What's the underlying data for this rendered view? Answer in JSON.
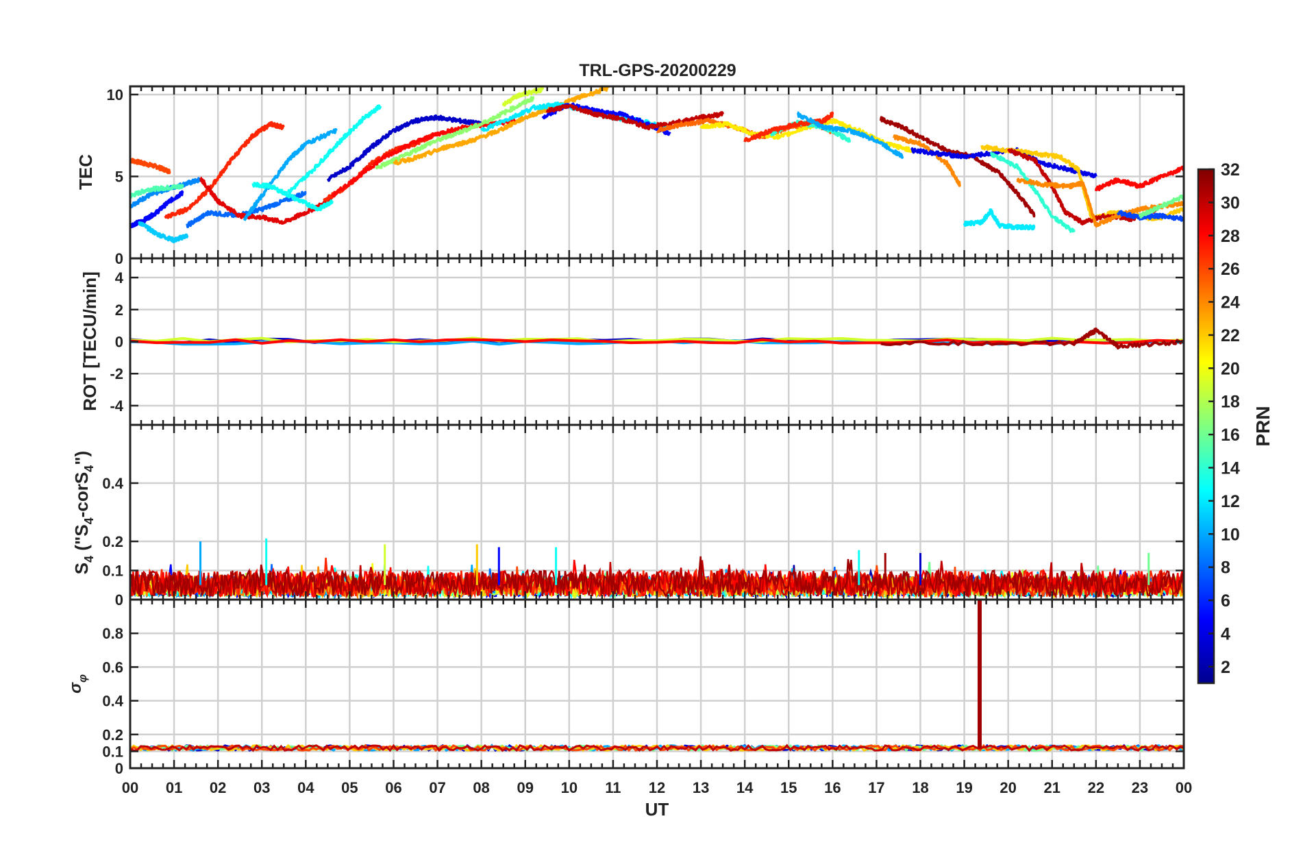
{
  "chart_data": {
    "type": "line",
    "title": "TRL-GPS-20200229",
    "xlabel": "UT",
    "xlim": [
      0,
      24
    ],
    "x_tick_labels": [
      "00",
      "01",
      "02",
      "03",
      "04",
      "05",
      "06",
      "07",
      "08",
      "09",
      "10",
      "11",
      "12",
      "13",
      "14",
      "15",
      "16",
      "17",
      "18",
      "19",
      "20",
      "21",
      "22",
      "23",
      "00"
    ],
    "grid": true,
    "colorbar": {
      "label": "PRN",
      "range": [
        1,
        32
      ],
      "ticks": [
        "2",
        "4",
        "6",
        "8",
        "10",
        "12",
        "14",
        "16",
        "18",
        "20",
        "22",
        "24",
        "26",
        "28",
        "30",
        "32"
      ],
      "colormap": "jet",
      "colors": [
        "#00008f",
        "#0000ff",
        "#0080ff",
        "#00ffff",
        "#80ff80",
        "#ffff00",
        "#ff8000",
        "#ff0000",
        "#800000"
      ]
    },
    "panels": [
      {
        "id": "tec",
        "ylabel": "TEC",
        "ylim": [
          0,
          10.5
        ],
        "y_ticks": [
          0,
          5,
          10
        ],
        "y_tick_labels": [
          "0",
          "5",
          "10"
        ],
        "series": [
          {
            "prn": 26,
            "x": [
              0.0,
              0.3,
              0.6,
              0.9
            ],
            "y": [
              6.0,
              5.8,
              5.6,
              5.3
            ]
          },
          {
            "prn": 9,
            "x": [
              0.0,
              0.4,
              0.8,
              1.2,
              1.6
            ],
            "y": [
              3.2,
              3.8,
              4.2,
              4.5,
              4.8
            ]
          },
          {
            "prn": 15,
            "x": [
              0.0,
              0.4,
              0.8,
              1.2
            ],
            "y": [
              3.8,
              4.2,
              4.3,
              4.4
            ]
          },
          {
            "prn": 5,
            "x": [
              0.0,
              0.3,
              0.6,
              0.9,
              1.2
            ],
            "y": [
              2.0,
              2.3,
              2.8,
              3.5,
              4.0
            ]
          },
          {
            "prn": 11,
            "x": [
              0.2,
              0.6,
              1.0,
              1.3
            ],
            "y": [
              2.2,
              1.5,
              1.1,
              1.4
            ]
          },
          {
            "prn": 27,
            "x": [
              0.8,
              1.3,
              1.8,
              2.3,
              2.8,
              3.2,
              3.5
            ],
            "y": [
              2.5,
              3.0,
              4.2,
              6.0,
              7.5,
              8.2,
              8.0
            ]
          },
          {
            "prn": 8,
            "x": [
              1.3,
              1.8,
              2.4,
              3.0,
              3.6,
              4.0
            ],
            "y": [
              2.0,
              2.8,
              2.6,
              3.0,
              3.6,
              4.0
            ]
          },
          {
            "prn": 29,
            "x": [
              1.6,
              2.0,
              2.5,
              3.0,
              3.5,
              4.0,
              4.6
            ],
            "y": [
              4.9,
              3.5,
              2.6,
              2.5,
              2.2,
              2.8,
              3.6
            ]
          },
          {
            "prn": 10,
            "x": [
              2.6,
              3.0,
              3.6,
              4.0,
              4.7
            ],
            "y": [
              2.4,
              3.8,
              6.0,
              7.0,
              7.8
            ]
          },
          {
            "prn": 13,
            "x": [
              2.8,
              3.2,
              3.8,
              4.3,
              4.6
            ],
            "y": [
              4.5,
              4.4,
              3.6,
              3.0,
              3.5
            ]
          },
          {
            "prn": 13,
            "x": [
              3.6,
              4.2,
              4.8,
              5.3,
              5.7
            ],
            "y": [
              4.0,
              5.5,
              7.2,
              8.5,
              9.3
            ]
          },
          {
            "prn": 3,
            "x": [
              4.5,
              5.0,
              5.5,
              6.0,
              6.5,
              7.0,
              7.5,
              8.0
            ],
            "y": [
              4.8,
              5.6,
              6.8,
              7.8,
              8.4,
              8.6,
              8.4,
              8.2
            ]
          },
          {
            "prn": 27,
            "x": [
              4.4,
              5.0,
              5.5,
              6.0,
              6.5,
              6.9
            ],
            "y": [
              3.5,
              4.5,
              5.8,
              6.6,
              7.0,
              7.5
            ]
          },
          {
            "prn": 28,
            "x": [
              4.6,
              5.2,
              5.8,
              6.4,
              7.0,
              7.6,
              8.2,
              8.8
            ],
            "y": [
              3.8,
              5.0,
              6.2,
              7.0,
              7.6,
              8.0,
              8.2,
              8.4
            ]
          },
          {
            "prn": 17,
            "x": [
              5.6,
              6.2,
              6.8,
              7.4,
              8.0,
              8.6,
              9.2
            ],
            "y": [
              5.5,
              6.2,
              7.0,
              7.6,
              8.2,
              9.0,
              9.8
            ]
          },
          {
            "prn": 23,
            "x": [
              6.0,
              6.6,
              7.2,
              7.8,
              8.4,
              9.0,
              9.6,
              10.2,
              10.9
            ],
            "y": [
              5.8,
              6.2,
              6.8,
              7.2,
              7.8,
              8.6,
              9.2,
              9.8,
              10.4
            ]
          },
          {
            "prn": 19,
            "x": [
              8.5,
              8.9,
              9.4
            ],
            "y": [
              9.4,
              10.0,
              10.3
            ]
          },
          {
            "prn": 12,
            "x": [
              8.0,
              8.6,
              9.2,
              9.8,
              10.4,
              11.0,
              11.6,
              12.2
            ],
            "y": [
              7.8,
              8.5,
              9.2,
              9.4,
              9.0,
              8.6,
              8.4,
              8.0
            ]
          },
          {
            "prn": 5,
            "x": [
              9.4,
              10.0,
              10.6,
              11.2,
              11.8,
              12.3
            ],
            "y": [
              8.6,
              9.4,
              9.0,
              8.8,
              8.2,
              7.6
            ]
          },
          {
            "prn": 30,
            "x": [
              9.5,
              10.0,
              10.6,
              11.2,
              11.8,
              12.4,
              13.0,
              13.5
            ],
            "y": [
              9.0,
              9.3,
              8.8,
              8.5,
              8.0,
              8.3,
              8.6,
              8.8
            ]
          },
          {
            "prn": 25,
            "x": [
              12.0,
              12.6,
              13.2,
              13.8,
              14.4,
              15.0,
              15.6,
              16.1
            ],
            "y": [
              7.8,
              8.2,
              8.4,
              8.0,
              7.4,
              8.0,
              8.2,
              7.6
            ]
          },
          {
            "prn": 21,
            "x": [
              13.0,
              13.6,
              14.2,
              14.8,
              15.4,
              16.0,
              16.6,
              17.2,
              17.8
            ],
            "y": [
              8.0,
              8.2,
              7.6,
              7.4,
              8.0,
              8.4,
              7.8,
              7.0,
              6.6
            ]
          },
          {
            "prn": 14,
            "x": [
              14.6,
              15.2,
              15.8,
              16.4
            ],
            "y": [
              7.6,
              8.3,
              8.0,
              7.2
            ]
          },
          {
            "prn": 27,
            "x": [
              14.0,
              14.6,
              15.2,
              15.8,
              16.0
            ],
            "y": [
              7.2,
              7.8,
              8.2,
              8.4,
              8.8
            ]
          },
          {
            "prn": 10,
            "x": [
              15.2,
              15.8,
              16.4,
              17.0,
              17.6
            ],
            "y": [
              8.8,
              8.0,
              7.8,
              7.2,
              6.2
            ]
          },
          {
            "prn": 31,
            "x": [
              17.1,
              17.6,
              18.0,
              18.6,
              19.2,
              19.8,
              20.2,
              20.6
            ],
            "y": [
              8.5,
              8.0,
              7.4,
              6.6,
              6.2,
              5.2,
              4.0,
              2.6
            ]
          },
          {
            "prn": 24,
            "x": [
              17.4,
              18.0,
              18.6,
              18.9
            ],
            "y": [
              7.4,
              7.0,
              5.8,
              4.5
            ]
          },
          {
            "prn": 4,
            "x": [
              17.8,
              18.4,
              19.0,
              19.6,
              20.2,
              20.8,
              21.4,
              22.0
            ],
            "y": [
              6.6,
              6.4,
              6.2,
              6.4,
              6.6,
              5.8,
              5.4,
              5.0
            ]
          },
          {
            "prn": 12,
            "x": [
              19.0,
              19.4,
              19.6,
              19.8,
              20.2,
              20.6
            ],
            "y": [
              2.1,
              2.2,
              2.9,
              2.0,
              1.9,
              1.9
            ]
          },
          {
            "prn": 14,
            "x": [
              19.6,
              20.2,
              20.6,
              21.0,
              21.5
            ],
            "y": [
              6.4,
              5.6,
              4.2,
              2.6,
              1.6
            ]
          },
          {
            "prn": 22,
            "x": [
              19.4,
              20.0,
              20.6,
              21.2,
              21.6,
              21.9,
              22.4,
              22.9,
              23.4,
              24.0
            ],
            "y": [
              6.8,
              6.6,
              6.4,
              6.2,
              5.4,
              2.4,
              2.8,
              2.6,
              2.4,
              3.0
            ]
          },
          {
            "prn": 30,
            "x": [
              20.0,
              20.6,
              21.0,
              21.3,
              21.7,
              22.2,
              22.8,
              23.4
            ],
            "y": [
              6.6,
              6.0,
              4.4,
              2.8,
              2.2,
              2.6,
              2.4,
              3.0
            ]
          },
          {
            "prn": 24,
            "x": [
              20.2,
              20.8,
              21.4,
              21.7,
              22.0,
              22.5,
              23.0,
              23.6,
              24.0
            ],
            "y": [
              4.8,
              4.5,
              4.4,
              4.6,
              2.0,
              2.6,
              3.0,
              3.2,
              3.4
            ]
          },
          {
            "prn": 28,
            "x": [
              22.0,
              22.5,
              23.0,
              23.5,
              24.0
            ],
            "y": [
              4.2,
              4.8,
              4.4,
              5.0,
              5.5
            ]
          },
          {
            "prn": 7,
            "x": [
              22.5,
              23.0,
              23.5,
              24.0
            ],
            "y": [
              2.8,
              2.5,
              2.6,
              2.4
            ]
          },
          {
            "prn": 16,
            "x": [
              23.0,
              23.5,
              24.0
            ],
            "y": [
              2.6,
              3.2,
              3.8
            ]
          }
        ]
      },
      {
        "id": "rot",
        "ylabel": "ROT [TECU/min]",
        "ylim": [
          -5.2,
          5.2
        ],
        "y_ticks": [
          -4,
          -2,
          0,
          2,
          4
        ],
        "y_tick_labels": [
          "-4",
          "-2",
          "0",
          "2",
          "4"
        ],
        "series": [
          {
            "prn": 3,
            "x": [
              0.0,
              24.0
            ],
            "y": [
              0.05,
              0.05
            ]
          },
          {
            "prn": 10,
            "x": [
              0.0,
              24.0
            ],
            "y": [
              -0.05,
              -0.05
            ]
          },
          {
            "prn": 19,
            "x": [
              0.0,
              24.0
            ],
            "y": [
              0.1,
              0.1
            ]
          },
          {
            "prn": 28,
            "x": [
              0.0,
              24.0
            ],
            "y": [
              0.0,
              0.0
            ]
          },
          {
            "prn": 31,
            "x": [
              17.1,
              21.5,
              22.0,
              22.5,
              24.0
            ],
            "y": [
              -0.1,
              -0.1,
              0.7,
              -0.3,
              0.0
            ]
          }
        ]
      },
      {
        "id": "s4",
        "ylabel": "S4 (\"S4-corS4\")",
        "ylim": [
          0,
          0.6
        ],
        "y_ticks": [
          0,
          0.1,
          0.2,
          0.4
        ],
        "y_tick_labels": [
          "0",
          "0.1",
          "0.2",
          "0.4"
        ],
        "band": {
          "x": [
            0,
            24
          ],
          "y": [
            0.0,
            0.1
          ]
        },
        "spikes": [
          {
            "prn": 10,
            "x": 1.6,
            "y": 0.2
          },
          {
            "prn": 13,
            "x": 3.1,
            "y": 0.21
          },
          {
            "prn": 5,
            "x": 8.4,
            "y": 0.18
          },
          {
            "prn": 13,
            "x": 9.7,
            "y": 0.18
          },
          {
            "prn": 19,
            "x": 5.8,
            "y": 0.19
          },
          {
            "prn": 22,
            "x": 7.9,
            "y": 0.19
          },
          {
            "prn": 31,
            "x": 17.2,
            "y": 0.16
          },
          {
            "prn": 3,
            "x": 18.0,
            "y": 0.16
          },
          {
            "prn": 13,
            "x": 16.6,
            "y": 0.17
          },
          {
            "prn": 16,
            "x": 23.2,
            "y": 0.16
          }
        ]
      },
      {
        "id": "sigma_phi",
        "ylabel": "σφ",
        "ylim": [
          0,
          1.0
        ],
        "y_ticks": [
          0,
          0.1,
          0.2,
          0.4,
          0.6,
          0.8
        ],
        "y_tick_labels": [
          "0",
          "0.1",
          "0.2",
          "0.4",
          "0.6",
          "0.8"
        ],
        "baseline": 0.12,
        "spikes": [
          {
            "prn": 31,
            "x": 19.35,
            "y": 1.0
          }
        ]
      }
    ]
  }
}
